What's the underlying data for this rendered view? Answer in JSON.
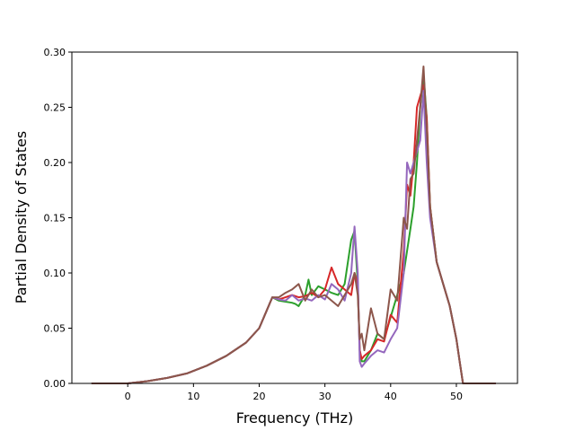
{
  "chart_data": {
    "type": "line",
    "title": "",
    "xlabel": "Frequency (THz)",
    "ylabel": "Partial Density of States",
    "xlim": [
      -8.5,
      59.3
    ],
    "ylim": [
      0,
      0.3
    ],
    "xticks": [
      0,
      10,
      20,
      30,
      40,
      50
    ],
    "yticks": [
      0.0,
      0.05,
      0.1,
      0.15,
      0.2,
      0.25,
      0.3
    ],
    "xtick_labels": [
      "0",
      "10",
      "20",
      "30",
      "40",
      "50"
    ],
    "ytick_labels": [
      "0.00",
      "0.05",
      "0.10",
      "0.15",
      "0.20",
      "0.25",
      "0.30"
    ],
    "grid": false,
    "legend": "none",
    "series": [
      {
        "color": "#2ca02c",
        "x": [
          -5.5,
          0,
          3,
          6,
          9,
          12,
          15,
          18,
          20,
          21,
          22,
          23,
          24,
          25,
          25.5,
          26,
          27,
          27.5,
          28,
          29,
          30,
          31,
          32,
          33,
          34,
          34.5,
          35,
          35.3,
          35.6,
          36,
          37,
          38,
          39,
          40,
          41,
          42,
          42.5,
          43,
          43.5,
          44,
          44.5,
          45,
          45.5,
          46,
          47,
          48,
          49,
          50,
          50.5,
          51,
          53,
          56
        ],
        "y": [
          0,
          0,
          0.002,
          0.005,
          0.009,
          0.016,
          0.025,
          0.037,
          0.05,
          0.064,
          0.078,
          0.075,
          0.074,
          0.073,
          0.072,
          0.07,
          0.08,
          0.094,
          0.08,
          0.088,
          0.085,
          0.082,
          0.08,
          0.09,
          0.13,
          0.138,
          0.09,
          0.03,
          0.02,
          0.02,
          0.03,
          0.045,
          0.04,
          0.06,
          0.08,
          0.1,
          0.12,
          0.14,
          0.16,
          0.2,
          0.25,
          0.28,
          0.24,
          0.16,
          0.11,
          0.09,
          0.07,
          0.04,
          0.02,
          0,
          0,
          0
        ]
      },
      {
        "color": "#d62728",
        "x": [
          -5.5,
          0,
          3,
          6,
          9,
          12,
          15,
          18,
          20,
          21,
          22,
          23,
          24,
          25,
          26,
          27,
          28,
          29,
          30,
          31,
          32,
          33,
          34,
          34.5,
          35,
          35.3,
          35.6,
          36,
          37,
          38,
          39,
          40,
          41,
          42,
          42.5,
          43,
          43.5,
          44,
          44.5,
          45,
          45.5,
          46,
          47,
          48,
          49,
          50,
          50.5,
          51,
          53,
          56
        ],
        "y": [
          0,
          0,
          0.002,
          0.005,
          0.009,
          0.016,
          0.025,
          0.037,
          0.05,
          0.064,
          0.078,
          0.076,
          0.078,
          0.08,
          0.078,
          0.079,
          0.082,
          0.078,
          0.085,
          0.105,
          0.09,
          0.085,
          0.08,
          0.1,
          0.09,
          0.03,
          0.022,
          0.025,
          0.03,
          0.04,
          0.038,
          0.062,
          0.055,
          0.12,
          0.18,
          0.17,
          0.2,
          0.25,
          0.26,
          0.27,
          0.24,
          0.16,
          0.11,
          0.09,
          0.07,
          0.04,
          0.02,
          0,
          0,
          0
        ]
      },
      {
        "color": "#9467bd",
        "x": [
          -5.5,
          0,
          3,
          6,
          9,
          12,
          15,
          18,
          20,
          21,
          22,
          23,
          24,
          25,
          26,
          27,
          28,
          29,
          30,
          31,
          32,
          33,
          34,
          34.5,
          35,
          35.3,
          35.6,
          36,
          37,
          38,
          39,
          40,
          41,
          42,
          42.5,
          43,
          43.5,
          44,
          44.5,
          45,
          45.5,
          46,
          47,
          48,
          49,
          50,
          50.5,
          51,
          53,
          56
        ],
        "y": [
          0,
          0,
          0.002,
          0.005,
          0.009,
          0.016,
          0.025,
          0.037,
          0.05,
          0.064,
          0.078,
          0.076,
          0.075,
          0.08,
          0.075,
          0.077,
          0.075,
          0.08,
          0.076,
          0.09,
          0.085,
          0.075,
          0.1,
          0.142,
          0.1,
          0.02,
          0.015,
          0.018,
          0.025,
          0.03,
          0.028,
          0.04,
          0.05,
          0.1,
          0.2,
          0.19,
          0.2,
          0.21,
          0.22,
          0.265,
          0.2,
          0.15,
          0.11,
          0.09,
          0.07,
          0.04,
          0.02,
          0,
          0,
          0
        ]
      },
      {
        "color": "#8c564b",
        "x": [
          -5.5,
          0,
          3,
          6,
          9,
          12,
          15,
          18,
          20,
          21,
          22,
          23,
          24,
          25,
          26,
          27,
          28,
          29,
          30,
          31,
          32,
          33,
          34,
          34.5,
          35,
          35.3,
          35.6,
          36,
          37,
          38,
          39,
          40,
          41,
          42,
          42.5,
          43,
          43.5,
          44,
          44.5,
          45,
          45.5,
          46,
          47,
          48,
          49,
          50,
          50.5,
          51,
          53,
          56
        ],
        "y": [
          0,
          0,
          0.002,
          0.005,
          0.009,
          0.016,
          0.025,
          0.037,
          0.05,
          0.064,
          0.078,
          0.078,
          0.082,
          0.085,
          0.09,
          0.075,
          0.085,
          0.078,
          0.08,
          0.075,
          0.07,
          0.08,
          0.09,
          0.1,
          0.08,
          0.04,
          0.045,
          0.03,
          0.068,
          0.045,
          0.04,
          0.085,
          0.075,
          0.15,
          0.14,
          0.185,
          0.19,
          0.22,
          0.25,
          0.287,
          0.23,
          0.16,
          0.11,
          0.09,
          0.07,
          0.04,
          0.02,
          0,
          0,
          0
        ]
      }
    ]
  }
}
